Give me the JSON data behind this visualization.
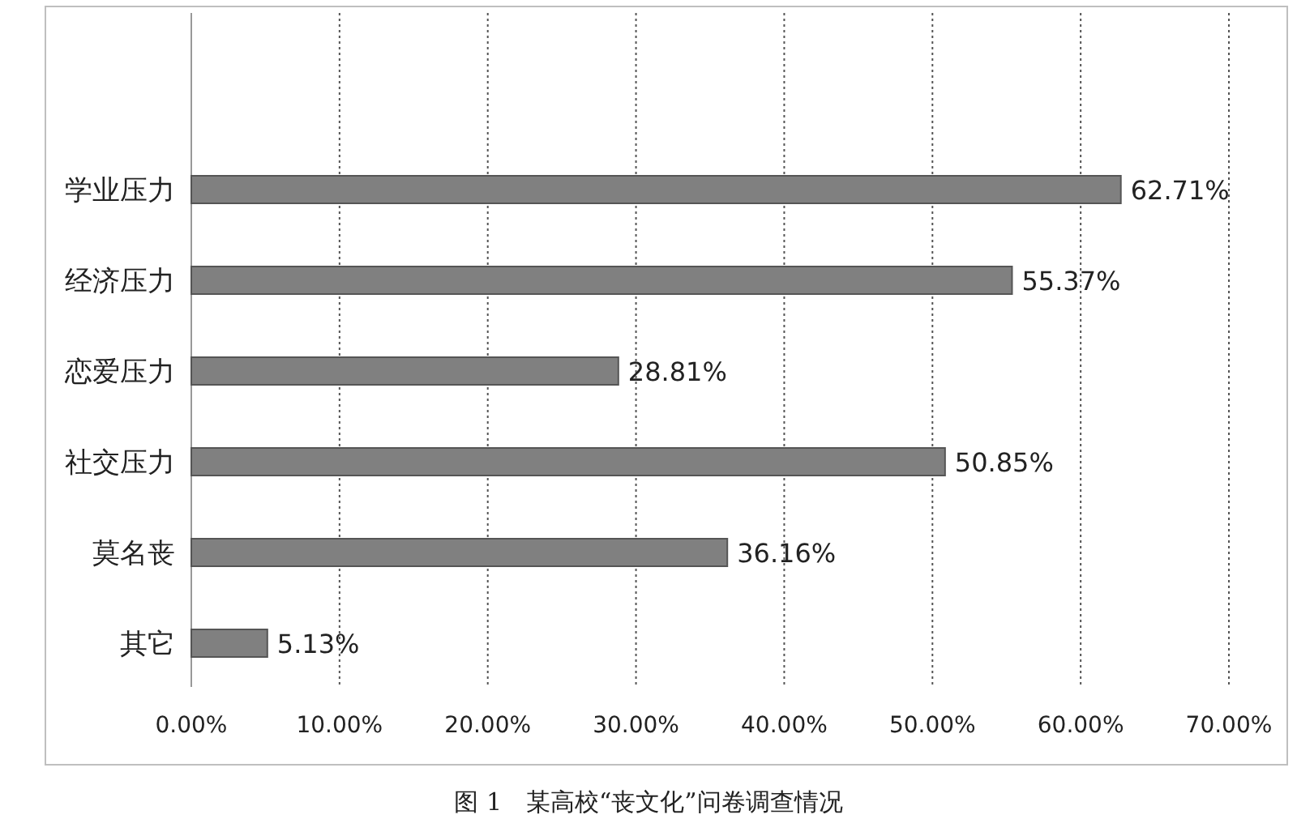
{
  "chart_data": {
    "type": "bar",
    "orientation": "horizontal",
    "title": "图 1　某高校“丧文化”问卷调查情况",
    "categories": [
      "学业压力",
      "经济压力",
      "恋爱压力",
      "社交压力",
      "莫名丧",
      "其它"
    ],
    "values": [
      62.71,
      55.37,
      28.81,
      50.85,
      36.16,
      5.13
    ],
    "value_labels": [
      "62.71%",
      "55.37%",
      "28.81%",
      "50.85%",
      "36.16%",
      "5.13%"
    ],
    "color": "#808080",
    "xlim": [
      0,
      70
    ],
    "xticks": [
      {
        "value": 0,
        "label": "0.00%"
      },
      {
        "value": 10,
        "label": "10.00%"
      },
      {
        "value": 20,
        "label": "20.00%"
      },
      {
        "value": 30,
        "label": "30.00%"
      },
      {
        "value": 40,
        "label": "40.00%"
      },
      {
        "value": 50,
        "label": "50.00%"
      },
      {
        "value": 60,
        "label": "60.00%"
      },
      {
        "value": 70,
        "label": "70.00%"
      }
    ],
    "grid": "x"
  }
}
